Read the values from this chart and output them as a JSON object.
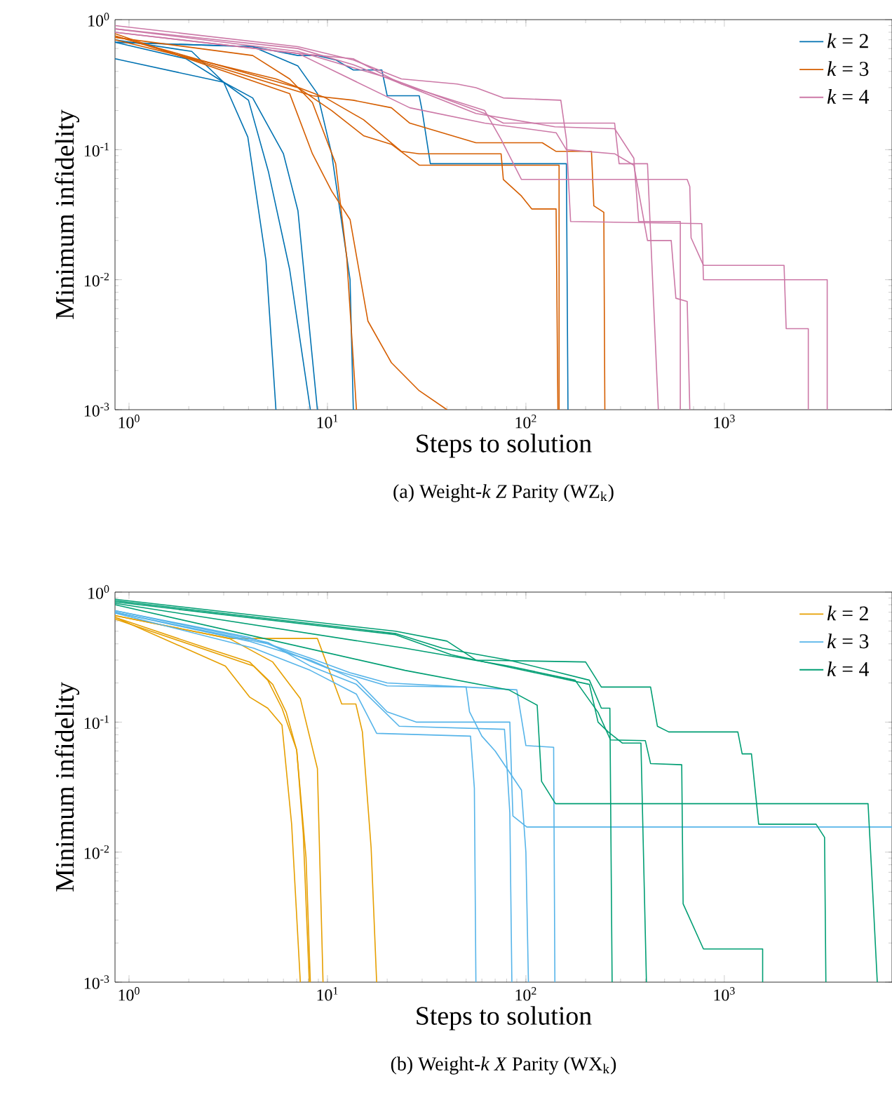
{
  "chart_data": [
    {
      "type": "line",
      "title": "(a) Weight-*k* *Z* Parity (WZ$_{k}$)",
      "xlabel": "Steps to solution",
      "ylabel": "Minimum infidelity",
      "log": "xy",
      "legend": "top right",
      "xlim": [
        0.85,
        7000
      ],
      "ylim": [
        0.001,
        1
      ],
      "xticks": [
        {
          "value": 1,
          "label": "10$^{0}$"
        },
        {
          "value": 10,
          "label": "10$^{1}$"
        },
        {
          "value": 100,
          "label": "10$^{2}$"
        },
        {
          "value": 1000,
          "label": "10$^{3}$"
        }
      ],
      "yticks": [
        {
          "value": 0.001,
          "label": "10$^{-3}$"
        },
        {
          "value": 0.01,
          "label": "10$^{-2}$"
        },
        {
          "value": 0.1,
          "label": "10$^{-1}$"
        },
        {
          "value": 1,
          "label": "10$^{0}$"
        }
      ],
      "series": [
        {
          "name": "*k* = 2",
          "color": "#0072b2",
          "x": [
            0.85,
            3.0,
            3.97,
            4.9,
            5.5
          ],
          "values": [
            0.5,
            0.33,
            0.125,
            0.014,
            0.001
          ]
        },
        {
          "color": "#0072b2",
          "x": [
            0.85,
            1.94,
            3.0,
            4.0,
            5.05,
            6.45,
            8.2
          ],
          "values": [
            0.67,
            0.5,
            0.33,
            0.24,
            0.067,
            0.012,
            0.001
          ]
        },
        {
          "color": "#0072b2",
          "x": [
            0.85,
            2.07,
            3.0,
            4.2,
            6.0,
            7.1,
            8.9
          ],
          "values": [
            0.7,
            0.57,
            0.33,
            0.25,
            0.093,
            0.034,
            0.001
          ]
        },
        {
          "color": "#0072b2",
          "x": [
            0.85,
            4.2,
            7.1,
            8.9,
            11,
            13.5,
            18.8,
            20,
            29,
            30,
            33,
            160,
            163
          ],
          "values": [
            0.67,
            0.62,
            0.53,
            0.53,
            0.49,
            0.41,
            0.41,
            0.26,
            0.26,
            0.2,
            0.078,
            0.078,
            0.001
          ]
        },
        {
          "color": "#0072b2",
          "x": [
            0.85,
            4.2,
            7.1,
            8.9,
            10.5,
            13,
            13.5
          ],
          "values": [
            0.67,
            0.62,
            0.44,
            0.27,
            0.093,
            0.01,
            0.001
          ]
        },
        {
          "name": "*k* = 3",
          "color": "#d55e00",
          "x": [
            0.85,
            6.45,
            8.4,
            10.5,
            13,
            16,
            21,
            29,
            40
          ],
          "values": [
            0.78,
            0.27,
            0.093,
            0.048,
            0.029,
            0.0048,
            0.0023,
            0.0014,
            0.001
          ]
        },
        {
          "color": "#d55e00",
          "x": [
            0.85,
            4.2,
            6.45,
            8.4,
            11,
            12.5,
            14
          ],
          "values": [
            0.73,
            0.53,
            0.35,
            0.23,
            0.078,
            0.015,
            0.001
          ]
        },
        {
          "color": "#d55e00",
          "x": [
            0.85,
            7.1,
            10.5,
            15.2,
            21,
            29,
            147,
            147
          ],
          "values": [
            0.75,
            0.3,
            0.2,
            0.128,
            0.11,
            0.076,
            0.076,
            0.001
          ]
        },
        {
          "color": "#d55e00",
          "x": [
            0.85,
            5.5,
            9.8,
            15.2,
            23.6,
            29,
            75,
            77,
            95,
            107,
            142,
            145
          ],
          "values": [
            0.7,
            0.35,
            0.25,
            0.17,
            0.097,
            0.093,
            0.093,
            0.059,
            0.044,
            0.035,
            0.035,
            0.001
          ]
        },
        {
          "color": "#d55e00",
          "x": [
            0.85,
            8.4,
            13.5,
            21,
            26,
            56,
            121,
            142,
            214,
            220,
            247,
            250
          ],
          "values": [
            0.75,
            0.26,
            0.24,
            0.21,
            0.16,
            0.113,
            0.113,
            0.097,
            0.097,
            0.037,
            0.033,
            0.001
          ]
        },
        {
          "name": "*k* = 4",
          "color": "#cc79a7",
          "x": [
            0.85,
            7.1,
            13.5,
            23.6,
            45,
            56,
            77,
            150,
            160,
            168,
            770,
            785,
            3300,
            3300
          ],
          "values": [
            0.9,
            0.62,
            0.49,
            0.35,
            0.32,
            0.3,
            0.25,
            0.24,
            0.12,
            0.028,
            0.027,
            0.01,
            0.01,
            0.001
          ]
        },
        {
          "color": "#cc79a7",
          "x": [
            0.85,
            7.1,
            21,
            62,
            77,
            280,
            295,
            410,
            435,
            465
          ],
          "values": [
            0.85,
            0.57,
            0.35,
            0.19,
            0.16,
            0.16,
            0.078,
            0.078,
            0.01,
            0.001
          ]
        },
        {
          "color": "#cc79a7",
          "x": [
            0.85,
            7.1,
            26,
            62,
            142,
            160,
            280,
            350,
            410,
            540,
            570,
            650,
            670
          ],
          "values": [
            0.8,
            0.55,
            0.21,
            0.16,
            0.135,
            0.1,
            0.093,
            0.076,
            0.02,
            0.02,
            0.0072,
            0.0068,
            0.001
          ]
        },
        {
          "color": "#cc79a7",
          "x": [
            0.85,
            7.1,
            13.5,
            56,
            140,
            280,
            350,
            370,
            600,
            600
          ],
          "values": [
            0.85,
            0.6,
            0.45,
            0.19,
            0.15,
            0.145,
            0.086,
            0.028,
            0.028,
            0.001
          ]
        },
        {
          "color": "#cc79a7",
          "x": [
            0.85,
            7.1,
            13.5,
            23.6,
            62,
            75,
            95,
            650,
            670,
            680,
            785,
            2000,
            2050,
            2650,
            2650
          ],
          "values": [
            0.8,
            0.55,
            0.5,
            0.32,
            0.2,
            0.12,
            0.059,
            0.059,
            0.052,
            0.021,
            0.0129,
            0.0129,
            0.0042,
            0.0042,
            0.001
          ]
        }
      ]
    },
    {
      "type": "line",
      "title": "(b) Weight-*k* *X* Parity (WX$_{k}$)",
      "xlabel": "Steps to solution",
      "ylabel": "Minimum infidelity",
      "log": "xy",
      "legend": "top right",
      "xlim": [
        0.85,
        7000
      ],
      "ylim": [
        0.001,
        1
      ],
      "xticks": [
        {
          "value": 1,
          "label": "10$^{0}$"
        },
        {
          "value": 10,
          "label": "10$^{1}$"
        },
        {
          "value": 100,
          "label": "10$^{2}$"
        },
        {
          "value": 1000,
          "label": "10$^{3}$"
        }
      ],
      "yticks": [
        {
          "value": 0.001,
          "label": "10$^{-3}$"
        },
        {
          "value": 0.01,
          "label": "10$^{-2}$"
        },
        {
          "value": 0.1,
          "label": "10$^{-1}$"
        },
        {
          "value": 1,
          "label": "10$^{0}$"
        }
      ],
      "series": [
        {
          "name": "*k* = 2",
          "color": "#e69f00",
          "x": [
            0.85,
            3.06,
            4.05,
            5,
            5.9,
            6.6,
            7.3
          ],
          "values": [
            0.64,
            0.27,
            0.156,
            0.128,
            0.095,
            0.0164,
            0.001
          ]
        },
        {
          "color": "#e69f00",
          "x": [
            0.85,
            2.47,
            4.05,
            5,
            5.9,
            7,
            7.8,
            8.2
          ],
          "values": [
            0.64,
            0.37,
            0.29,
            0.21,
            0.128,
            0.061,
            0.0091,
            0.001
          ]
        },
        {
          "color": "#e69f00",
          "x": [
            0.85,
            4.25,
            5.3,
            6.2,
            7,
            7.55,
            8.1
          ],
          "values": [
            0.62,
            0.27,
            0.195,
            0.119,
            0.061,
            0.014,
            0.001
          ]
        },
        {
          "color": "#e69f00",
          "x": [
            0.85,
            3.2,
            5.3,
            7.3,
            8.9,
            9.5
          ],
          "values": [
            0.66,
            0.44,
            0.29,
            0.152,
            0.044,
            0.001
          ]
        },
        {
          "color": "#e69f00",
          "x": [
            0.85,
            3.2,
            8.9,
            11.8,
            13.9,
            15,
            16.6,
            17.7
          ],
          "values": [
            0.66,
            0.44,
            0.44,
            0.138,
            0.138,
            0.084,
            0.0108,
            0.001
          ]
        },
        {
          "name": "*k* = 3",
          "color": "#56b4e9",
          "x": [
            0.85,
            4.25,
            8.2,
            14,
            17.7,
            52.6,
            55,
            56
          ],
          "values": [
            0.69,
            0.37,
            0.25,
            0.164,
            0.082,
            0.078,
            0.031,
            0.001
          ]
        },
        {
          "color": "#56b4e9",
          "x": [
            0.85,
            5,
            8.2,
            14,
            23,
            78,
            80,
            83,
            85
          ],
          "values": [
            0.72,
            0.41,
            0.27,
            0.195,
            0.093,
            0.088,
            0.05,
            0.02,
            0.001
          ]
        },
        {
          "color": "#56b4e9",
          "x": [
            0.85,
            4,
            8.2,
            14,
            20,
            28,
            83,
            86,
            101,
            7000
          ],
          "values": [
            0.7,
            0.42,
            0.3,
            0.21,
            0.12,
            0.1,
            0.1,
            0.019,
            0.0156,
            0.0156
          ]
        },
        {
          "color": "#56b4e9",
          "x": [
            0.85,
            4,
            8.2,
            13,
            20,
            50,
            90,
            100,
            138,
            140
          ],
          "values": [
            0.72,
            0.45,
            0.31,
            0.24,
            0.2,
            0.186,
            0.177,
            0.066,
            0.064,
            0.001
          ]
        },
        {
          "color": "#56b4e9",
          "x": [
            0.85,
            5,
            10,
            20,
            50,
            52,
            60,
            70,
            95,
            100,
            103
          ],
          "values": [
            0.7,
            0.4,
            0.26,
            0.19,
            0.186,
            0.12,
            0.078,
            0.06,
            0.03,
            0.01,
            0.001
          ]
        },
        {
          "name": "*k* = 4",
          "color": "#009e73",
          "x": [
            0.85,
            22,
            38,
            82,
            209,
            240,
            265,
            272
          ],
          "values": [
            0.86,
            0.48,
            0.37,
            0.3,
            0.21,
            0.128,
            0.128,
            0.001
          ]
        },
        {
          "color": "#009e73",
          "x": [
            0.85,
            22,
            42,
            56,
            209,
            231,
            260,
            306,
            380,
            405
          ],
          "values": [
            0.84,
            0.47,
            0.33,
            0.3,
            0.195,
            0.1,
            0.084,
            0.069,
            0.069,
            0.001
          ]
        },
        {
          "color": "#009e73",
          "x": [
            0.85,
            24.6,
            82,
            177,
            231,
            267,
            400,
            425,
            610,
            620,
            785,
            1560,
            1560
          ],
          "values": [
            0.82,
            0.37,
            0.27,
            0.21,
            0.119,
            0.073,
            0.072,
            0.048,
            0.047,
            0.004,
            0.0018,
            0.0018,
            0.001
          ]
        },
        {
          "color": "#009e73",
          "x": [
            0.85,
            24.6,
            82,
            114,
            120,
            141,
            5300,
            5600,
            5900
          ],
          "values": [
            0.8,
            0.25,
            0.177,
            0.135,
            0.035,
            0.0236,
            0.0236,
            0.0048,
            0.001
          ]
        },
        {
          "color": "#009e73",
          "x": [
            0.85,
            22,
            40,
            56,
            200,
            240,
            425,
            460,
            525,
            1170,
            1230,
            1370,
            1490,
            2900,
            3200,
            3250
          ],
          "values": [
            0.88,
            0.5,
            0.42,
            0.3,
            0.29,
            0.186,
            0.186,
            0.093,
            0.084,
            0.084,
            0.057,
            0.057,
            0.0164,
            0.0164,
            0.013,
            0.001
          ]
        }
      ]
    }
  ]
}
